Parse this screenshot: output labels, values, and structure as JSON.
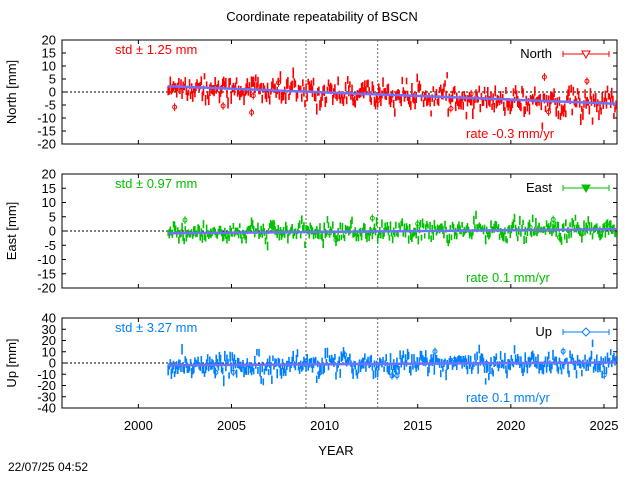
{
  "chart_data": {
    "type": "scatter",
    "title": "Coordinate repeatability of BSCN",
    "xlabel": "YEAR",
    "xlim": [
      1995.9,
      2025.7
    ],
    "xticks": [
      2000,
      2005,
      2010,
      2015,
      2020,
      2025
    ],
    "vlines": [
      2009.0,
      2012.85
    ],
    "data_start": 2001.6,
    "timestamp": "22/07/25 04:52",
    "panels": [
      {
        "name": "North",
        "ylabel": "North [mm]",
        "ylim": [
          -20,
          20
        ],
        "yticks": [
          -20,
          -15,
          -10,
          -5,
          0,
          5,
          10,
          15,
          20
        ],
        "color": "#ff0000",
        "trend_color": "#7070ff",
        "std_label": "std ± 1.25 mm",
        "rate_label": "rate -0.3 mm/yr",
        "legend": "North",
        "marker": "triangle-down-open",
        "trend_start": 2.2,
        "trend_end": -4.5,
        "scatter": 2.4,
        "err": 1.6,
        "seasonal": 1.5
      },
      {
        "name": "East",
        "ylabel": "East [mm]",
        "ylim": [
          -20,
          20
        ],
        "yticks": [
          -20,
          -15,
          -10,
          -5,
          0,
          5,
          10,
          15,
          20
        ],
        "color": "#00c000",
        "trend_color": "#7070ff",
        "std_label": "std ± 0.97 mm",
        "rate_label": "rate  0.1 mm/yr",
        "legend": "East",
        "marker": "triangle-down-filled",
        "trend_start": -0.8,
        "trend_end": 0.6,
        "scatter": 1.6,
        "err": 1.2,
        "seasonal": 0.6
      },
      {
        "name": "Up",
        "ylabel": "Up [mm]",
        "ylim": [
          -40,
          40
        ],
        "yticks": [
          -40,
          -30,
          -20,
          -10,
          0,
          10,
          20,
          30,
          40
        ],
        "color": "#0080ff",
        "trend_color": "#7070ff",
        "std_label": "std ± 3.27 mm",
        "rate_label": "rate  0.1 mm/yr",
        "legend": "Up",
        "marker": "diamond-open",
        "trend_start": -2.0,
        "trend_end": 0.5,
        "scatter": 4.5,
        "err": 3.5,
        "seasonal": 2.0
      }
    ]
  }
}
